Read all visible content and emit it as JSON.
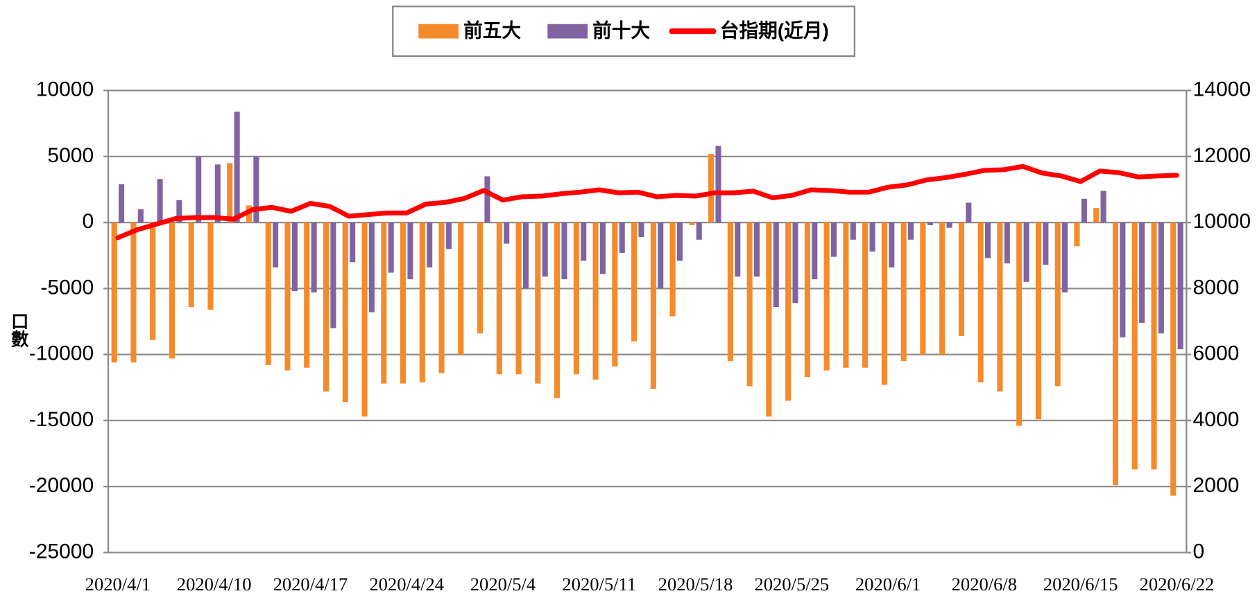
{
  "chart_data": {
    "type": "bar_line",
    "y_axis_label": "口數",
    "categories": [
      "2020/4/1",
      null,
      null,
      null,
      null,
      "2020/4/10",
      null,
      null,
      null,
      null,
      "2020/4/17",
      null,
      null,
      null,
      null,
      "2020/4/24",
      null,
      null,
      null,
      null,
      "2020/5/4",
      null,
      null,
      null,
      null,
      "2020/5/11",
      null,
      null,
      null,
      null,
      "2020/5/18",
      null,
      null,
      null,
      null,
      "2020/5/25",
      null,
      null,
      null,
      null,
      "2020/6/1",
      null,
      null,
      null,
      null,
      "2020/6/8",
      null,
      null,
      null,
      null,
      "2020/6/15",
      null,
      null,
      null,
      null,
      "2020/6/22"
    ],
    "series": [
      {
        "name": "前五大",
        "type": "bar",
        "color": "#F58A2A",
        "values": [
          -10600,
          -10600,
          -8900,
          -10300,
          -6400,
          -6600,
          4500,
          1300,
          -10800,
          -11200,
          -11000,
          -12800,
          -13600,
          -14700,
          -12200,
          -12200,
          -12100,
          -11400,
          -10000,
          -8400,
          -11500,
          -11500,
          -12200,
          -13300,
          -11500,
          -11900,
          -10900,
          -9000,
          -12600,
          -7100,
          -200,
          5200,
          -10500,
          -12400,
          -14700,
          -13500,
          -11700,
          -11200,
          -11000,
          -11000,
          -12300,
          -10500,
          -10000,
          -10000,
          -8600,
          -12100,
          -12800,
          -15400,
          -14900,
          -12400,
          -1800,
          1100,
          -19900,
          -18700,
          -18700,
          -20700
        ]
      },
      {
        "name": "前十大",
        "type": "bar",
        "color": "#8064A2",
        "values": [
          2900,
          1000,
          3300,
          1700,
          5000,
          4400,
          8400,
          5000,
          -3400,
          -5200,
          -5300,
          -8000,
          -3000,
          -6800,
          -3800,
          -4300,
          -3400,
          -2000,
          0,
          3500,
          -1600,
          -5000,
          -4100,
          -4300,
          -2900,
          -3900,
          -2300,
          -1100,
          -5000,
          -2900,
          -1300,
          5800,
          -4100,
          -4100,
          -6400,
          -6100,
          -4300,
          -2600,
          -1300,
          -2200,
          -3400,
          -1300,
          -200,
          -400,
          1500,
          -2700,
          -3100,
          -4500,
          -3200,
          -5300,
          1800,
          2400,
          -8700,
          -7600,
          -8400,
          -9600
        ]
      },
      {
        "name": "台指期(近月)",
        "type": "line",
        "axis": "y2",
        "color": "#FF0000",
        "values": [
          9540,
          9780,
          9950,
          10120,
          10150,
          10150,
          10100,
          10390,
          10460,
          10340,
          10580,
          10490,
          10190,
          10240,
          10290,
          10290,
          10560,
          10610,
          10730,
          10970,
          10680,
          10780,
          10800,
          10870,
          10920,
          10990,
          10900,
          10920,
          10780,
          10820,
          10800,
          10900,
          10900,
          10950,
          10750,
          10820,
          10990,
          10970,
          10920,
          10920,
          11070,
          11140,
          11290,
          11360,
          11460,
          11580,
          11600,
          11700,
          11500,
          11410,
          11240,
          11560,
          11510,
          11380,
          11410,
          11430
        ]
      }
    ],
    "ylim": [
      -25000,
      10000
    ],
    "yticks": [
      -25000,
      -20000,
      -15000,
      -10000,
      -5000,
      0,
      5000,
      10000
    ],
    "y2lim": [
      0,
      14000
    ],
    "y2ticks": [
      0,
      2000,
      4000,
      6000,
      8000,
      10000,
      12000,
      14000
    ],
    "grid": true,
    "legend": "top"
  }
}
